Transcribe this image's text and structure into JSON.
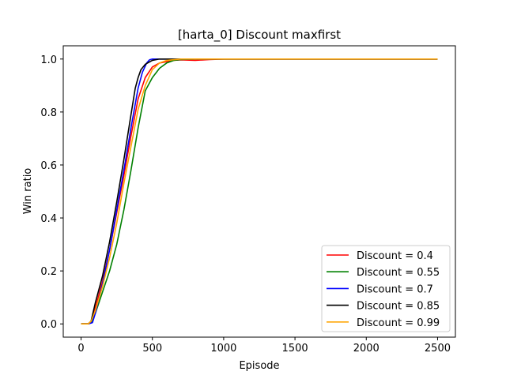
{
  "chart_data": {
    "type": "line",
    "title": "[harta_0] Discount  maxfirst",
    "xlabel": "Episode",
    "ylabel": "Win ratio",
    "xlim": [
      -125,
      2625
    ],
    "ylim": [
      -0.05,
      1.05
    ],
    "xticks": [
      0,
      500,
      1000,
      1500,
      2000,
      2500
    ],
    "yticks": [
      0.0,
      0.2,
      0.4,
      0.6,
      0.8,
      1.0
    ],
    "xtick_labels": [
      "0",
      "500",
      "1000",
      "1500",
      "2000",
      "2500"
    ],
    "ytick_labels": [
      "0.0",
      "0.2",
      "0.4",
      "0.6",
      "0.8",
      "1.0"
    ],
    "grid": false,
    "legend_position": "lower-right",
    "series": [
      {
        "name": "Discount = 0.4",
        "color": "#ff0000",
        "x": [
          0,
          50,
          70,
          100,
          150,
          200,
          250,
          300,
          350,
          400,
          450,
          500,
          550,
          600,
          650,
          700,
          800,
          900,
          1000,
          2500
        ],
        "y": [
          0.0,
          0.0,
          0.01,
          0.06,
          0.16,
          0.28,
          0.42,
          0.56,
          0.71,
          0.85,
          0.93,
          0.97,
          0.985,
          0.99,
          0.995,
          0.997,
          0.995,
          0.998,
          1.0,
          1.0
        ]
      },
      {
        "name": "Discount = 0.55",
        "color": "#008000",
        "x": [
          0,
          50,
          70,
          100,
          150,
          200,
          250,
          300,
          350,
          400,
          450,
          500,
          550,
          600,
          650,
          700,
          800,
          1000,
          2500
        ],
        "y": [
          0.0,
          0.0,
          0.005,
          0.04,
          0.12,
          0.2,
          0.3,
          0.43,
          0.58,
          0.74,
          0.88,
          0.93,
          0.965,
          0.985,
          0.995,
          0.998,
          1.0,
          1.0,
          1.0
        ]
      },
      {
        "name": "Discount = 0.7",
        "color": "#0000ff",
        "x": [
          0,
          50,
          80,
          100,
          150,
          200,
          250,
          300,
          350,
          380,
          400,
          430,
          460,
          480,
          500,
          520,
          1000,
          2500
        ],
        "y": [
          0.0,
          0.0,
          0.005,
          0.04,
          0.15,
          0.28,
          0.43,
          0.58,
          0.74,
          0.83,
          0.89,
          0.95,
          0.985,
          0.997,
          1.0,
          1.0,
          1.0,
          1.0
        ]
      },
      {
        "name": "Discount = 0.85",
        "color": "#000000",
        "x": [
          0,
          50,
          70,
          100,
          150,
          200,
          250,
          300,
          350,
          380,
          400,
          420,
          450,
          500,
          550,
          600,
          1000,
          2500
        ],
        "y": [
          0.0,
          0.0,
          0.01,
          0.08,
          0.18,
          0.31,
          0.46,
          0.62,
          0.79,
          0.89,
          0.93,
          0.96,
          0.98,
          0.995,
          1.0,
          1.0,
          1.0,
          1.0
        ]
      },
      {
        "name": "Discount = 0.99",
        "color": "#ffa500",
        "x": [
          0,
          50,
          70,
          100,
          150,
          200,
          250,
          300,
          350,
          400,
          450,
          500,
          550,
          600,
          700,
          1000,
          2500
        ],
        "y": [
          0.0,
          0.0,
          0.01,
          0.05,
          0.14,
          0.25,
          0.38,
          0.53,
          0.67,
          0.81,
          0.9,
          0.96,
          0.985,
          0.995,
          1.0,
          1.0,
          1.0
        ]
      }
    ]
  }
}
